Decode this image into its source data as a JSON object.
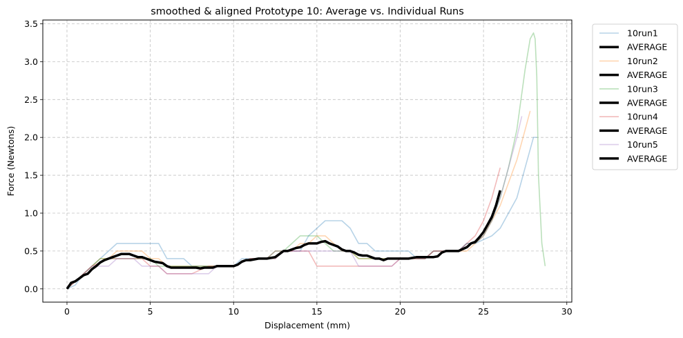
{
  "colors": {
    "run1": "#1f77b4",
    "run2": "#ff7f0e",
    "run3": "#2ca02c",
    "run4": "#d62728",
    "run5": "#9467bd",
    "average": "#000000",
    "grid": "#b0b0b0"
  },
  "chart_data": {
    "type": "line",
    "title": "smoothed & aligned Prototype 10: Average vs. Individual Runs",
    "xlabel": "Displacement (mm)",
    "ylabel": "Force (Newtons)",
    "xlim": [
      -1.45,
      30.3
    ],
    "ylim": [
      -0.175,
      3.55
    ],
    "xticks": [
      0,
      5,
      10,
      15,
      20,
      25,
      30
    ],
    "xtick_labels": [
      "0",
      "5",
      "10",
      "15",
      "20",
      "25",
      "30"
    ],
    "yticks": [
      0.0,
      0.5,
      1.0,
      1.5,
      2.0,
      2.5,
      3.0,
      3.5
    ],
    "ytick_labels": [
      "0.0",
      "0.5",
      "1.0",
      "1.5",
      "2.0",
      "2.5",
      "3.0",
      "3.5"
    ],
    "grid": true,
    "legend_position": "outside-right-top",
    "legend": [
      "10run1",
      "AVERAGE",
      "10run2",
      "AVERAGE",
      "10run3",
      "AVERAGE",
      "10run4",
      "AVERAGE",
      "10run5",
      "AVERAGE"
    ],
    "series": [
      {
        "name": "10run1",
        "color_key": "run1",
        "x": [
          0,
          0.5,
          1.0,
          1.5,
          2.0,
          2.5,
          3.0,
          3.5,
          4.0,
          4.5,
          5.0,
          5.5,
          6.0,
          6.5,
          7.0,
          7.5,
          8.0,
          8.5,
          9.0,
          9.5,
          10.0,
          10.5,
          11.0,
          11.5,
          12.0,
          12.5,
          13.0,
          13.5,
          14.0,
          14.5,
          15.0,
          15.5,
          16.0,
          16.5,
          17.0,
          17.5,
          18.0,
          18.5,
          19.0,
          19.5,
          20.0,
          20.5,
          21.0,
          21.5,
          22.0,
          22.5,
          23.0,
          23.5,
          24.0,
          24.5,
          25.0,
          25.5,
          26.0,
          26.5,
          27.0,
          27.5,
          28.0,
          28.2
        ],
        "y": [
          0.0,
          0.05,
          0.2,
          0.3,
          0.4,
          0.5,
          0.6,
          0.6,
          0.6,
          0.6,
          0.6,
          0.6,
          0.4,
          0.4,
          0.4,
          0.3,
          0.3,
          0.3,
          0.3,
          0.3,
          0.3,
          0.4,
          0.4,
          0.4,
          0.4,
          0.4,
          0.5,
          0.5,
          0.5,
          0.7,
          0.8,
          0.9,
          0.9,
          0.9,
          0.8,
          0.6,
          0.6,
          0.5,
          0.5,
          0.5,
          0.5,
          0.5,
          0.4,
          0.4,
          0.5,
          0.5,
          0.5,
          0.5,
          0.6,
          0.6,
          0.65,
          0.7,
          0.8,
          1.0,
          1.2,
          1.6,
          2.0,
          2.0
        ]
      },
      {
        "name": "10run2",
        "color_key": "run2",
        "x": [
          0,
          0.5,
          1.0,
          1.5,
          2.0,
          2.5,
          3.0,
          3.5,
          4.0,
          4.5,
          5.0,
          5.5,
          6.0,
          6.5,
          7.0,
          7.5,
          8.0,
          8.5,
          9.0,
          9.5,
          10.0,
          10.5,
          11.0,
          11.5,
          12.0,
          12.5,
          13.0,
          13.5,
          14.0,
          14.5,
          15.0,
          15.5,
          16.0,
          16.5,
          17.0,
          17.5,
          18.0,
          18.5,
          19.0,
          19.5,
          20.0,
          20.5,
          21.0,
          21.5,
          22.0,
          22.5,
          23.0,
          23.5,
          24.0,
          24.5,
          25.0,
          25.5,
          26.0,
          26.5,
          27.0,
          27.5,
          27.8
        ],
        "y": [
          0.0,
          0.1,
          0.2,
          0.3,
          0.4,
          0.4,
          0.5,
          0.5,
          0.5,
          0.5,
          0.4,
          0.4,
          0.3,
          0.3,
          0.3,
          0.3,
          0.3,
          0.3,
          0.3,
          0.3,
          0.3,
          0.35,
          0.4,
          0.4,
          0.4,
          0.5,
          0.5,
          0.5,
          0.6,
          0.6,
          0.7,
          0.7,
          0.6,
          0.5,
          0.5,
          0.4,
          0.4,
          0.4,
          0.4,
          0.4,
          0.4,
          0.4,
          0.4,
          0.4,
          0.5,
          0.5,
          0.5,
          0.5,
          0.5,
          0.6,
          0.7,
          0.9,
          1.1,
          1.4,
          1.7,
          2.1,
          2.35
        ]
      },
      {
        "name": "10run3",
        "color_key": "run3",
        "x": [
          0,
          0.5,
          1.0,
          1.5,
          2.0,
          2.5,
          3.0,
          3.5,
          4.0,
          4.5,
          5.0,
          5.5,
          6.0,
          6.5,
          7.0,
          7.5,
          8.0,
          8.5,
          9.0,
          9.5,
          10.0,
          10.5,
          11.0,
          11.5,
          12.0,
          12.5,
          13.0,
          13.5,
          14.0,
          14.5,
          15.0,
          15.5,
          16.0,
          16.5,
          17.0,
          17.5,
          18.0,
          18.5,
          19.0,
          19.5,
          20.0,
          20.5,
          21.0,
          21.5,
          22.0,
          22.5,
          23.0,
          23.5,
          24.0,
          24.5,
          25.0,
          25.5,
          26.0,
          26.5,
          27.0,
          27.5,
          27.8,
          28.0,
          28.1,
          28.2,
          28.3,
          28.5,
          28.7
        ],
        "y": [
          0.0,
          0.1,
          0.2,
          0.3,
          0.4,
          0.4,
          0.4,
          0.4,
          0.4,
          0.4,
          0.4,
          0.3,
          0.3,
          0.3,
          0.3,
          0.3,
          0.3,
          0.3,
          0.3,
          0.3,
          0.3,
          0.35,
          0.4,
          0.4,
          0.4,
          0.5,
          0.5,
          0.6,
          0.7,
          0.7,
          0.7,
          0.6,
          0.5,
          0.5,
          0.5,
          0.4,
          0.4,
          0.4,
          0.4,
          0.4,
          0.4,
          0.4,
          0.4,
          0.4,
          0.5,
          0.5,
          0.5,
          0.5,
          0.6,
          0.6,
          0.7,
          0.9,
          1.2,
          1.6,
          2.1,
          2.9,
          3.3,
          3.38,
          3.3,
          2.8,
          1.5,
          0.6,
          0.3
        ]
      },
      {
        "name": "10run4",
        "color_key": "run4",
        "x": [
          0,
          0.5,
          1.0,
          1.5,
          2.0,
          2.5,
          3.0,
          3.5,
          4.0,
          4.5,
          5.0,
          5.5,
          6.0,
          6.5,
          7.0,
          7.5,
          8.0,
          8.5,
          9.0,
          9.5,
          10.0,
          10.5,
          11.0,
          11.5,
          12.0,
          12.5,
          13.0,
          13.5,
          14.0,
          14.5,
          15.0,
          15.5,
          16.0,
          16.5,
          17.0,
          17.5,
          18.0,
          18.5,
          19.0,
          19.5,
          20.0,
          20.5,
          21.0,
          21.5,
          22.0,
          22.5,
          23.0,
          23.5,
          24.0,
          24.5,
          25.0,
          25.5,
          26.0
        ],
        "y": [
          0.0,
          0.1,
          0.2,
          0.3,
          0.35,
          0.4,
          0.4,
          0.4,
          0.4,
          0.4,
          0.3,
          0.3,
          0.2,
          0.2,
          0.2,
          0.2,
          0.25,
          0.3,
          0.3,
          0.3,
          0.3,
          0.35,
          0.4,
          0.4,
          0.4,
          0.4,
          0.5,
          0.5,
          0.5,
          0.5,
          0.3,
          0.3,
          0.3,
          0.3,
          0.3,
          0.3,
          0.3,
          0.3,
          0.3,
          0.3,
          0.4,
          0.4,
          0.4,
          0.4,
          0.5,
          0.5,
          0.5,
          0.5,
          0.6,
          0.7,
          0.9,
          1.2,
          1.6
        ]
      },
      {
        "name": "10run5",
        "color_key": "run5",
        "x": [
          0,
          0.5,
          1.0,
          1.5,
          2.0,
          2.5,
          3.0,
          3.5,
          4.0,
          4.5,
          5.0,
          5.5,
          6.0,
          6.5,
          7.0,
          7.5,
          8.0,
          8.5,
          9.0,
          9.5,
          10.0,
          10.5,
          11.0,
          11.5,
          12.0,
          12.5,
          13.0,
          13.5,
          14.0,
          14.5,
          15.0,
          15.5,
          16.0,
          16.5,
          17.0,
          17.5,
          18.0,
          18.5,
          19.0,
          19.5,
          20.0,
          20.5,
          21.0,
          21.5,
          22.0,
          22.5,
          23.0,
          23.5,
          24.0,
          24.5,
          25.0,
          25.5,
          26.0,
          26.5,
          27.0,
          27.3
        ],
        "y": [
          0.0,
          0.1,
          0.2,
          0.3,
          0.3,
          0.3,
          0.4,
          0.4,
          0.4,
          0.3,
          0.3,
          0.3,
          0.2,
          0.2,
          0.2,
          0.2,
          0.2,
          0.2,
          0.3,
          0.3,
          0.3,
          0.35,
          0.4,
          0.4,
          0.4,
          0.5,
          0.5,
          0.5,
          0.5,
          0.5,
          0.5,
          0.5,
          0.5,
          0.5,
          0.5,
          0.3,
          0.3,
          0.3,
          0.3,
          0.3,
          0.4,
          0.4,
          0.4,
          0.4,
          0.5,
          0.5,
          0.5,
          0.5,
          0.6,
          0.6,
          0.7,
          0.9,
          1.2,
          1.6,
          2.0,
          2.28
        ]
      },
      {
        "name": "AVERAGE",
        "color_key": "average",
        "x": [
          0,
          0.25,
          0.5,
          0.75,
          1.0,
          1.25,
          1.5,
          1.75,
          2.0,
          2.25,
          2.5,
          2.75,
          3.0,
          3.25,
          3.5,
          3.75,
          4.0,
          4.25,
          4.5,
          4.75,
          5.0,
          5.25,
          5.5,
          5.75,
          6.0,
          6.25,
          6.5,
          6.75,
          7.0,
          7.25,
          7.5,
          7.75,
          8.0,
          8.25,
          8.5,
          8.75,
          9.0,
          9.25,
          9.5,
          9.75,
          10.0,
          10.25,
          10.5,
          10.75,
          11.0,
          11.5,
          12.0,
          12.5,
          12.75,
          13.0,
          13.25,
          13.5,
          13.75,
          14.0,
          14.25,
          14.5,
          14.75,
          15.0,
          15.25,
          15.5,
          15.75,
          16.0,
          16.25,
          16.5,
          16.75,
          17.0,
          17.25,
          17.5,
          17.75,
          18.0,
          18.25,
          18.5,
          18.75,
          19.0,
          19.25,
          19.5,
          19.75,
          20.0,
          20.5,
          21.0,
          21.5,
          22.0,
          22.25,
          22.5,
          22.75,
          23.0,
          23.5,
          24.0,
          24.25,
          24.5,
          24.75,
          25.0,
          25.25,
          25.5,
          25.75,
          26.0
        ],
        "y": [
          0.0,
          0.08,
          0.1,
          0.14,
          0.18,
          0.2,
          0.26,
          0.3,
          0.35,
          0.38,
          0.4,
          0.42,
          0.44,
          0.46,
          0.46,
          0.46,
          0.44,
          0.42,
          0.42,
          0.4,
          0.38,
          0.36,
          0.35,
          0.34,
          0.3,
          0.28,
          0.28,
          0.28,
          0.28,
          0.28,
          0.28,
          0.28,
          0.27,
          0.28,
          0.28,
          0.28,
          0.3,
          0.3,
          0.3,
          0.3,
          0.3,
          0.32,
          0.36,
          0.38,
          0.38,
          0.4,
          0.4,
          0.42,
          0.46,
          0.5,
          0.5,
          0.52,
          0.54,
          0.55,
          0.58,
          0.6,
          0.6,
          0.6,
          0.62,
          0.63,
          0.6,
          0.58,
          0.56,
          0.52,
          0.5,
          0.5,
          0.48,
          0.45,
          0.44,
          0.44,
          0.42,
          0.4,
          0.4,
          0.38,
          0.4,
          0.4,
          0.4,
          0.4,
          0.4,
          0.42,
          0.42,
          0.42,
          0.43,
          0.48,
          0.5,
          0.5,
          0.5,
          0.55,
          0.6,
          0.62,
          0.68,
          0.75,
          0.85,
          0.95,
          1.1,
          1.3
        ]
      }
    ]
  }
}
